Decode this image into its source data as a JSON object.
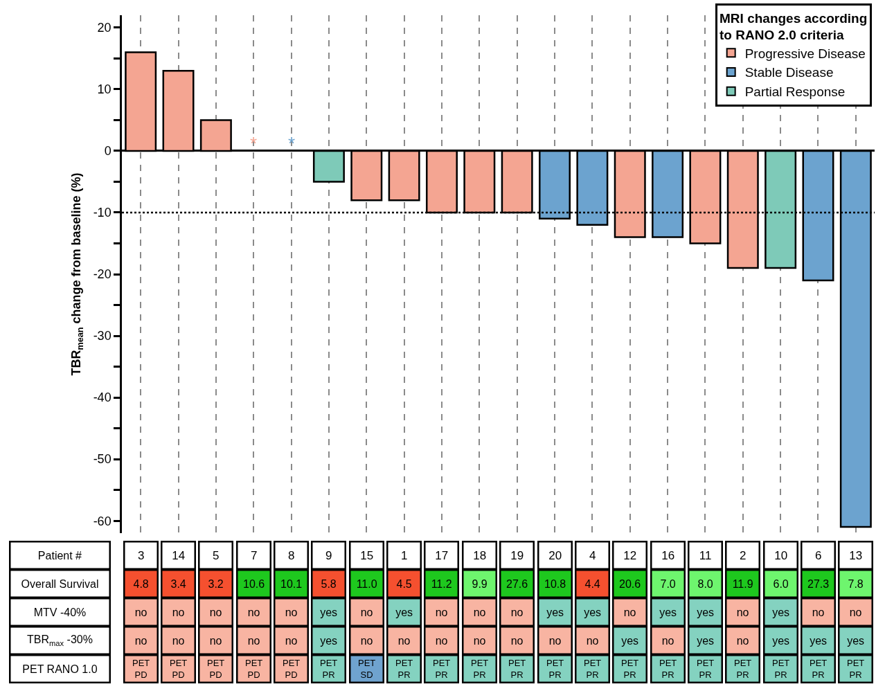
{
  "chart_data": [
    {
      "type": "bar",
      "categories": [
        "3",
        "14",
        "5",
        "7",
        "8",
        "9",
        "15",
        "1",
        "17",
        "18",
        "19",
        "20",
        "4",
        "12",
        "16",
        "11",
        "2",
        "10",
        "6",
        "13"
      ],
      "tick_labels": "y",
      "ylabel": "TBR$_{mean}$ change from baseline (%)",
      "ylim": [
        -62,
        22
      ],
      "yticks": [
        20,
        {
          "value": 15,
          "label": null
        },
        10,
        {
          "value": 5,
          "label": null
        },
        0,
        {
          "value": -5,
          "label": null
        },
        -10,
        {
          "value": -15,
          "label": null
        },
        -20,
        {
          "value": -25,
          "label": null
        },
        -30,
        {
          "value": -35,
          "label": null
        },
        -40,
        {
          "value": -45,
          "label": null
        },
        -50,
        {
          "value": -55,
          "label": null
        },
        -60
      ],
      "series": [
        {
          "name": "Progressive Disease",
          "color": "#f4a592",
          "values": [
            16,
            13,
            5,
            0,
            null,
            null,
            -8,
            -8,
            -10,
            -10,
            -10,
            null,
            null,
            -14,
            null,
            -15,
            -19,
            null,
            null,
            null
          ]
        },
        {
          "name": "Stable Disease",
          "color": "#6ca3cf",
          "values": [
            null,
            null,
            null,
            null,
            0,
            null,
            null,
            null,
            null,
            null,
            null,
            -11,
            -12,
            null,
            -14,
            null,
            null,
            null,
            -21,
            -61
          ]
        },
        {
          "name": "Partial Response",
          "color": "#7ecab8",
          "values": [
            null,
            null,
            null,
            null,
            null,
            -5,
            null,
            null,
            null,
            null,
            null,
            null,
            null,
            null,
            null,
            null,
            null,
            -19,
            null,
            null
          ]
        }
      ],
      "legend_title": "MRI changes according to RANO 2.0 criteria",
      "legend": "top right",
      "grid": "x",
      "ref_lines": [
        {
          "axis": "y",
          "value": -10,
          "line_style": "dotted",
          "color": "#000000"
        }
      ],
      "annotations": [
        {
          "text": "*",
          "x": "7",
          "y": 0
        },
        {
          "text": "*",
          "x": "8",
          "y": 0
        }
      ]
    },
    {
      "type": "heatmap",
      "categories": [
        "3",
        "14",
        "5",
        "7",
        "8",
        "9",
        "15",
        "1",
        "17",
        "18",
        "19",
        "20",
        "4",
        "12",
        "16",
        "11",
        "2",
        "10",
        "6",
        "13"
      ],
      "xlabel": "Patient #",
      "y_categories": [
        "Overall Survival",
        "MTV -40%",
        "TBR$_{max}$ -30%",
        "PET RANO 1.0"
      ],
      "cells": [
        [
          4.8,
          3.4,
          3.2,
          10.6,
          10.1,
          5.8,
          11.0,
          4.5,
          11.2,
          9.9,
          27.6,
          10.8,
          4.4,
          20.6,
          7.0,
          8.0,
          11.9,
          6.0,
          27.3,
          7.8
        ],
        [
          null,
          null,
          null,
          null,
          null,
          null,
          null,
          null,
          null,
          null,
          null,
          null,
          null,
          null,
          null,
          null,
          null,
          null,
          null,
          null
        ],
        [
          null,
          null,
          null,
          null,
          null,
          null,
          null,
          null,
          null,
          null,
          null,
          null,
          null,
          null,
          null,
          null,
          null,
          null,
          null,
          null
        ],
        [
          null,
          null,
          null,
          null,
          null,
          null,
          null,
          null,
          null,
          null,
          null,
          null,
          null,
          null,
          null,
          null,
          null,
          null,
          null,
          null
        ]
      ],
      "cell_labels": [
        [
          "4.8",
          "3.4",
          "3.2",
          "10.6",
          "10.1",
          "5.8",
          "11.0",
          "4.5",
          "11.2",
          "9.9",
          "27.6",
          "10.8",
          "4.4",
          "20.6",
          "7.0",
          "8.0",
          "11.9",
          "6.0",
          "27.3",
          "7.8"
        ],
        [
          "no",
          "no",
          "no",
          "no",
          "no",
          "yes",
          "no",
          "yes",
          "no",
          "no",
          "no",
          "yes",
          "yes",
          "no",
          "yes",
          "yes",
          "no",
          "yes",
          "no",
          "no"
        ],
        [
          "no",
          "no",
          "no",
          "no",
          "no",
          "yes",
          "no",
          "no",
          "no",
          "no",
          "no",
          "no",
          "no",
          "yes",
          "no",
          "yes",
          "no",
          "yes",
          "yes",
          "yes"
        ],
        [
          "PET\nPD",
          "PET\nPD",
          "PET\nPD",
          "PET\nPD",
          "PET\nPD",
          "PET\nPR",
          "PET\nSD",
          "PET\nPR",
          "PET\nPR",
          "PET\nPR",
          "PET\nPR",
          "PET\nPR",
          "PET\nPR",
          "PET\nPR",
          "PET\nPR",
          "PET\nPR",
          "PET\nPR",
          "PET\nPR",
          "PET\nPR",
          "PET\nPR"
        ]
      ],
      "colors": [
        [
          "#f5502f",
          "#f5502f",
          "#f5502f",
          "#1ec81e",
          "#1ec81e",
          "#f5502f",
          "#1ec81e",
          "#f5502f",
          "#1ec81e",
          "#6ef56e",
          "#1ec81e",
          "#1ec81e",
          "#f5502f",
          "#1ec81e",
          "#6ef56e",
          "#6ef56e",
          "#1ec81e",
          "#6ef56e",
          "#1ec81e",
          "#6ef56e"
        ],
        [
          "#f8b4a2",
          "#f8b4a2",
          "#f8b4a2",
          "#f8b4a2",
          "#f8b4a2",
          "#84d2c0",
          "#f8b4a2",
          "#84d2c0",
          "#f8b4a2",
          "#f8b4a2",
          "#f8b4a2",
          "#84d2c0",
          "#84d2c0",
          "#f8b4a2",
          "#84d2c0",
          "#84d2c0",
          "#f8b4a2",
          "#84d2c0",
          "#f8b4a2",
          "#f8b4a2"
        ],
        [
          "#f8b4a2",
          "#f8b4a2",
          "#f8b4a2",
          "#f8b4a2",
          "#f8b4a2",
          "#84d2c0",
          "#f8b4a2",
          "#f8b4a2",
          "#f8b4a2",
          "#f8b4a2",
          "#f8b4a2",
          "#f8b4a2",
          "#f8b4a2",
          "#84d2c0",
          "#f8b4a2",
          "#84d2c0",
          "#f8b4a2",
          "#84d2c0",
          "#84d2c0",
          "#84d2c0"
        ],
        [
          "#f8b4a2",
          "#f8b4a2",
          "#f8b4a2",
          "#f8b4a2",
          "#f8b4a2",
          "#84d2c0",
          "#6fa3cf",
          "#84d2c0",
          "#84d2c0",
          "#84d2c0",
          "#84d2c0",
          "#84d2c0",
          "#84d2c0",
          "#84d2c0",
          "#84d2c0",
          "#84d2c0",
          "#84d2c0",
          "#84d2c0",
          "#84d2c0",
          "#84d2c0"
        ]
      ]
    }
  ]
}
